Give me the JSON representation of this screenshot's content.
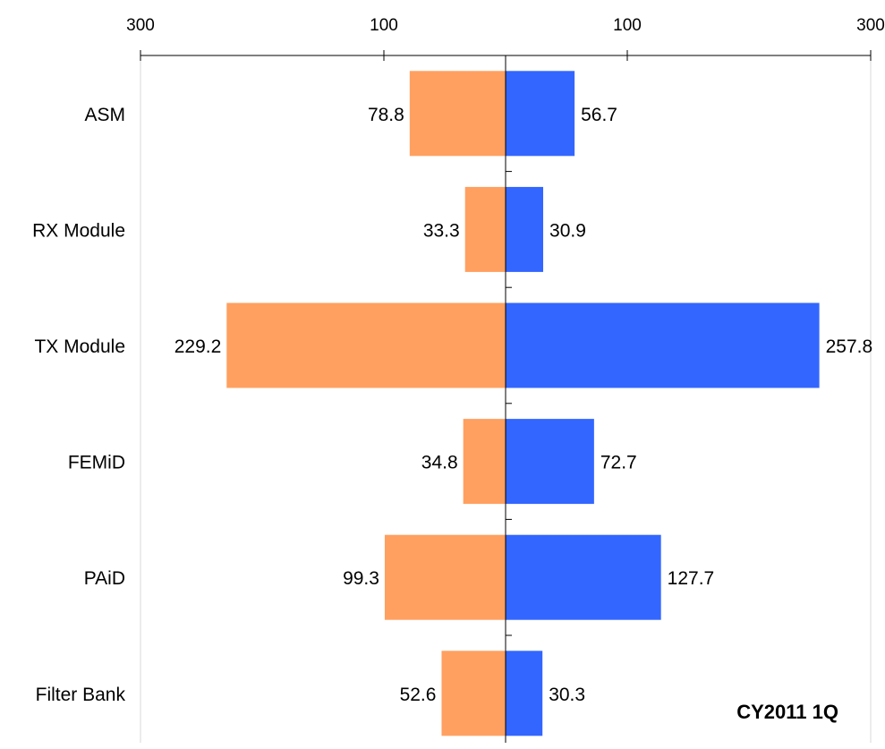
{
  "chart_data": {
    "type": "bar",
    "orientation": "horizontal",
    "layout": "diverging",
    "categories": [
      "ASM",
      "RX Module",
      "TX Module",
      "FEMiD",
      "PAiD",
      "Filter Bank"
    ],
    "series": [
      {
        "values": [
          78.8,
          33.3,
          229.2,
          34.8,
          99.3,
          52.6
        ],
        "side": "left",
        "color": "#ffa060"
      },
      {
        "values": [
          56.7,
          30.9,
          257.8,
          72.7,
          127.7,
          30.3
        ],
        "side": "right",
        "color": "#3366ff"
      }
    ],
    "x_ticks": [
      "300",
      "100",
      "100",
      "300"
    ],
    "x_tick_values": [
      -300,
      -100,
      100,
      300
    ],
    "xlim": [
      -300,
      300
    ],
    "grid": false,
    "legend": "none",
    "annotation": "CY2011 1Q",
    "title": "",
    "xlabel": "",
    "ylabel": ""
  }
}
